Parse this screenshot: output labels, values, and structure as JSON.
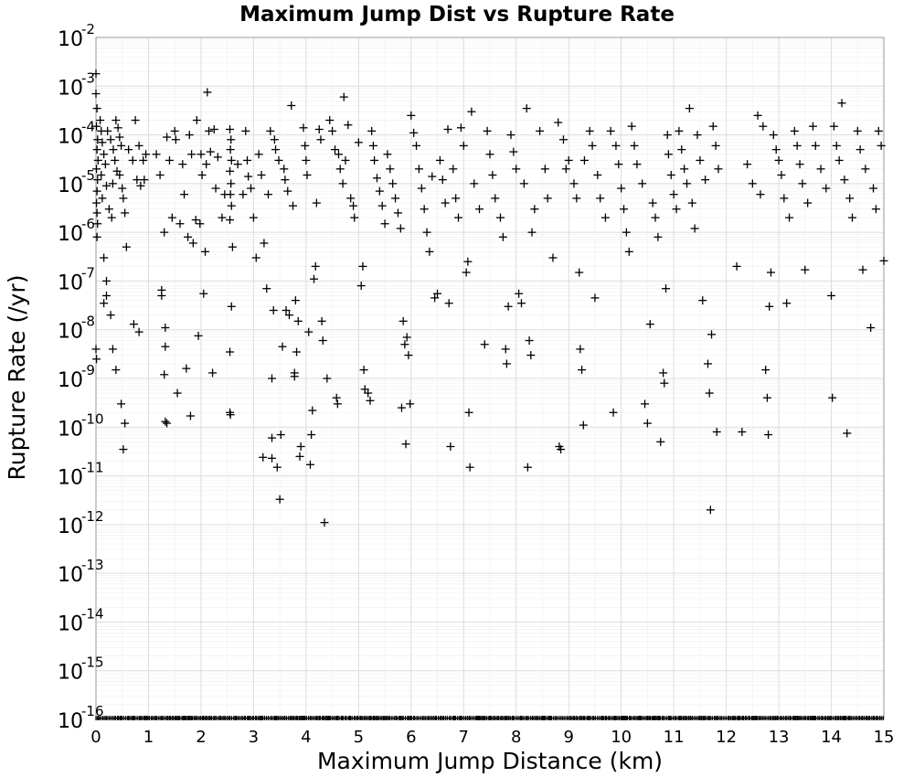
{
  "chart_data": {
    "type": "scatter",
    "title": "Maximum Jump Dist vs Rupture Rate",
    "xlabel": "Maximum Jump Distance (km)",
    "ylabel": "Rupture Rate (/yr)",
    "xlim": [
      0,
      15
    ],
    "ylim": [
      1e-16,
      0.01
    ],
    "yscale": "log",
    "grid": true,
    "marker": "plus",
    "marker_color": "#000000",
    "x_ticks": [
      "0",
      "1",
      "2",
      "3",
      "4",
      "5",
      "6",
      "7",
      "8",
      "9",
      "10",
      "11",
      "12",
      "13",
      "14",
      "15"
    ],
    "y_ticks": [
      {
        "base": "10",
        "exp": "-2"
      },
      {
        "base": "10",
        "exp": "-3"
      },
      {
        "base": "10",
        "exp": "-4"
      },
      {
        "base": "10",
        "exp": "-5"
      },
      {
        "base": "10",
        "exp": "-6"
      },
      {
        "base": "10",
        "exp": "-7"
      },
      {
        "base": "10",
        "exp": "-8"
      },
      {
        "base": "10",
        "exp": "-9"
      },
      {
        "base": "10",
        "exp": "-10"
      },
      {
        "base": "10",
        "exp": "-11"
      },
      {
        "base": "10",
        "exp": "-12"
      },
      {
        "base": "10",
        "exp": "-13"
      },
      {
        "base": "10",
        "exp": "-14"
      },
      {
        "base": "10",
        "exp": "-15"
      },
      {
        "base": "10",
        "exp": "-16"
      }
    ],
    "points": [
      [
        0.0,
        0.0018
      ],
      [
        0.0,
        0.0007
      ],
      [
        0.02,
        0.00035
      ],
      [
        0.01,
        0.00015
      ],
      [
        0.03,
        8e-05
      ],
      [
        0.02,
        5e-05
      ],
      [
        0.04,
        3e-05
      ],
      [
        0.01,
        2e-05
      ],
      [
        0.03,
        1.2e-05
      ],
      [
        0.02,
        7e-06
      ],
      [
        0.01,
        4e-06
      ],
      [
        0.02,
        2.5e-06
      ],
      [
        0.03,
        1.5e-06
      ],
      [
        0.02,
        8e-07
      ],
      [
        0.0,
        4e-09
      ],
      [
        0.01,
        2.5e-09
      ],
      [
        0.08,
        0.0002
      ],
      [
        0.1,
        0.00012
      ],
      [
        0.12,
        7e-05
      ],
      [
        0.15,
        4e-05
      ],
      [
        0.18,
        2.5e-05
      ],
      [
        0.1,
        1.5e-05
      ],
      [
        0.2,
        9e-06
      ],
      [
        0.12,
        5e-06
      ],
      [
        0.25,
        3e-06
      ],
      [
        0.3,
        2e-06
      ],
      [
        0.22,
        0.00012
      ],
      [
        0.28,
        8e-05
      ],
      [
        0.33,
        5e-05
      ],
      [
        0.36,
        3e-05
      ],
      [
        0.4,
        1.8e-05
      ],
      [
        0.32,
        1e-05
      ],
      [
        0.38,
        0.0002
      ],
      [
        0.42,
        0.00014
      ],
      [
        0.45,
        9e-05
      ],
      [
        0.48,
        6e-05
      ],
      [
        0.15,
        3e-07
      ],
      [
        0.2,
        1e-07
      ],
      [
        0.15,
        3.5e-08
      ],
      [
        0.2,
        5e-08
      ],
      [
        0.28,
        2e-08
      ],
      [
        0.32,
        4e-09
      ],
      [
        0.38,
        1.5e-09
      ],
      [
        0.48,
        3e-10
      ],
      [
        0.55,
        1.2e-10
      ],
      [
        0.52,
        3.5e-11
      ],
      [
        0.45,
        1.5e-05
      ],
      [
        0.5,
        8e-06
      ],
      [
        0.52,
        5e-06
      ],
      [
        0.55,
        2.5e-06
      ],
      [
        0.58,
        5e-07
      ],
      [
        0.62,
        5e-05
      ],
      [
        0.7,
        3e-05
      ],
      [
        0.75,
        0.0002
      ],
      [
        0.78,
        1.2e-05
      ],
      [
        0.82,
        6e-05
      ],
      [
        0.85,
        9e-06
      ],
      [
        0.9,
        3e-05
      ],
      [
        0.72,
        1.3e-08
      ],
      [
        0.82,
        9e-09
      ],
      [
        0.92,
        1.2e-05
      ],
      [
        0.95,
        4e-05
      ],
      [
        1.15,
        4e-05
      ],
      [
        1.22,
        1.5e-05
      ],
      [
        1.25,
        5e-08
      ],
      [
        1.25,
        6.5e-08
      ],
      [
        1.3,
        1e-06
      ],
      [
        1.35,
        1.2e-10
      ],
      [
        1.32,
        1.3e-10
      ],
      [
        1.32,
        4.5e-09
      ],
      [
        1.32,
        1.1e-08
      ],
      [
        1.3,
        1.2e-09
      ],
      [
        1.35,
        9e-05
      ],
      [
        1.4,
        3e-05
      ],
      [
        1.45,
        2e-06
      ],
      [
        1.5,
        0.00012
      ],
      [
        1.52,
        8e-05
      ],
      [
        1.55,
        5e-10
      ],
      [
        1.6,
        1.5e-06
      ],
      [
        1.65,
        2.5e-05
      ],
      [
        1.68,
        6e-06
      ],
      [
        1.72,
        1.6e-09
      ],
      [
        1.75,
        8e-07
      ],
      [
        1.78,
        0.0001
      ],
      [
        1.8,
        1.7e-10
      ],
      [
        1.82,
        4e-05
      ],
      [
        1.85,
        6e-07
      ],
      [
        1.9,
        1.8e-06
      ],
      [
        1.92,
        0.0002
      ],
      [
        1.95,
        7.5e-09
      ],
      [
        1.98,
        1.5e-06
      ],
      [
        2.0,
        4e-05
      ],
      [
        2.02,
        1.5e-05
      ],
      [
        2.05,
        5.5e-08
      ],
      [
        2.08,
        4e-07
      ],
      [
        2.1,
        2.5e-05
      ],
      [
        2.12,
        0.00075
      ],
      [
        2.15,
        0.00012
      ],
      [
        2.18,
        4.5e-05
      ],
      [
        2.22,
        1.3e-09
      ],
      [
        2.25,
        0.00013
      ],
      [
        2.28,
        8e-06
      ],
      [
        2.32,
        3.5e-05
      ],
      [
        2.4,
        2e-06
      ],
      [
        2.45,
        6e-06
      ],
      [
        2.55,
        0.00013
      ],
      [
        2.57,
        8e-05
      ],
      [
        2.56,
        5e-05
      ],
      [
        2.58,
        3e-05
      ],
      [
        2.55,
        1.8e-05
      ],
      [
        2.57,
        1e-05
      ],
      [
        2.56,
        6e-06
      ],
      [
        2.58,
        3.5e-06
      ],
      [
        2.55,
        1.8e-06
      ],
      [
        2.58,
        3e-08
      ],
      [
        2.55,
        3.5e-09
      ],
      [
        2.56,
        1.8e-10
      ],
      [
        2.55,
        2e-10
      ],
      [
        2.6,
        5e-07
      ],
      [
        2.7,
        2.5e-05
      ],
      [
        2.8,
        6e-06
      ],
      [
        2.85,
        0.00012
      ],
      [
        2.88,
        3e-05
      ],
      [
        2.9,
        1.4e-05
      ],
      [
        2.95,
        8e-06
      ],
      [
        3.0,
        2e-06
      ],
      [
        3.05,
        3e-07
      ],
      [
        3.1,
        4e-05
      ],
      [
        3.15,
        1.5e-05
      ],
      [
        3.18,
        2.4e-11
      ],
      [
        3.2,
        6e-07
      ],
      [
        3.25,
        7e-08
      ],
      [
        3.28,
        6e-06
      ],
      [
        3.32,
        0.00012
      ],
      [
        3.35,
        1e-09
      ],
      [
        3.35,
        6e-11
      ],
      [
        3.35,
        2.3e-11
      ],
      [
        3.38,
        2.5e-08
      ],
      [
        3.4,
        8e-05
      ],
      [
        3.42,
        5e-05
      ],
      [
        3.45,
        1.5e-11
      ],
      [
        3.48,
        3e-05
      ],
      [
        3.5,
        3.3e-12
      ],
      [
        3.52,
        7e-11
      ],
      [
        3.55,
        4.5e-09
      ],
      [
        3.58,
        2e-05
      ],
      [
        3.6,
        1.2e-05
      ],
      [
        3.62,
        2.5e-08
      ],
      [
        3.65,
        7e-06
      ],
      [
        3.68,
        2e-08
      ],
      [
        3.72,
        0.0004
      ],
      [
        3.75,
        3.5e-06
      ],
      [
        3.78,
        1.1e-09
      ],
      [
        3.78,
        1.3e-09
      ],
      [
        3.8,
        4e-08
      ],
      [
        3.82,
        3.5e-09
      ],
      [
        3.85,
        1.5e-08
      ],
      [
        3.88,
        2.5e-11
      ],
      [
        3.9,
        4e-11
      ],
      [
        3.95,
        0.00014
      ],
      [
        3.98,
        6e-05
      ],
      [
        4.0,
        3e-05
      ],
      [
        4.02,
        1.5e-05
      ],
      [
        4.05,
        9e-09
      ],
      [
        4.08,
        1.7e-11
      ],
      [
        4.1,
        7e-11
      ],
      [
        4.12,
        2.2e-10
      ],
      [
        4.15,
        1.1e-07
      ],
      [
        4.18,
        2e-07
      ],
      [
        4.2,
        4e-06
      ],
      [
        4.25,
        0.00013
      ],
      [
        4.28,
        8e-05
      ],
      [
        4.3,
        1.5e-08
      ],
      [
        4.32,
        6e-09
      ],
      [
        4.35,
        1.1e-12
      ],
      [
        4.4,
        1e-09
      ],
      [
        4.45,
        0.0002
      ],
      [
        4.5,
        0.00012
      ],
      [
        4.55,
        5e-05
      ],
      [
        4.58,
        4e-10
      ],
      [
        4.6,
        3e-10
      ],
      [
        4.62,
        4e-05
      ],
      [
        4.65,
        2e-05
      ],
      [
        4.7,
        1e-05
      ],
      [
        4.72,
        0.0006
      ],
      [
        4.75,
        3e-05
      ],
      [
        4.8,
        0.00016
      ],
      [
        4.85,
        5e-06
      ],
      [
        4.9,
        3.5e-06
      ],
      [
        4.92,
        2e-06
      ],
      [
        5.0,
        7e-05
      ],
      [
        5.05,
        8e-08
      ],
      [
        5.08,
        2e-07
      ],
      [
        5.1,
        1.5e-09
      ],
      [
        5.12,
        6e-10
      ],
      [
        5.18,
        5e-10
      ],
      [
        5.22,
        3.5e-10
      ],
      [
        5.25,
        0.00012
      ],
      [
        5.28,
        6e-05
      ],
      [
        5.3,
        3e-05
      ],
      [
        5.35,
        1.3e-05
      ],
      [
        5.4,
        7e-06
      ],
      [
        5.45,
        3.5e-06
      ],
      [
        5.5,
        1.5e-06
      ],
      [
        5.55,
        4e-05
      ],
      [
        5.6,
        2e-05
      ],
      [
        5.65,
        1e-05
      ],
      [
        5.7,
        5e-06
      ],
      [
        5.75,
        2.5e-06
      ],
      [
        5.8,
        1.2e-06
      ],
      [
        5.82,
        2.5e-10
      ],
      [
        5.85,
        1.5e-08
      ],
      [
        5.88,
        5e-09
      ],
      [
        5.9,
        4.5e-11
      ],
      [
        5.92,
        7e-09
      ],
      [
        5.95,
        3e-09
      ],
      [
        5.98,
        3e-10
      ],
      [
        6.0,
        0.00025
      ],
      [
        6.05,
        0.00011
      ],
      [
        6.1,
        6e-05
      ],
      [
        6.15,
        2e-05
      ],
      [
        6.2,
        8e-06
      ],
      [
        6.25,
        3e-06
      ],
      [
        6.3,
        1e-06
      ],
      [
        6.35,
        4e-07
      ],
      [
        6.4,
        1.4e-05
      ],
      [
        6.45,
        4.5e-08
      ],
      [
        6.5,
        5.5e-08
      ],
      [
        6.55,
        3e-05
      ],
      [
        6.6,
        1.2e-05
      ],
      [
        6.65,
        4e-06
      ],
      [
        6.7,
        0.00013
      ],
      [
        6.72,
        3.5e-08
      ],
      [
        6.75,
        4e-11
      ],
      [
        6.8,
        2e-05
      ],
      [
        6.85,
        5e-06
      ],
      [
        6.9,
        2e-06
      ],
      [
        6.95,
        0.00014
      ],
      [
        7.0,
        6e-05
      ],
      [
        7.05,
        1.5e-07
      ],
      [
        7.08,
        2.5e-07
      ],
      [
        7.1,
        2e-10
      ],
      [
        7.12,
        1.5e-11
      ],
      [
        7.15,
        0.0003
      ],
      [
        7.2,
        1e-05
      ],
      [
        7.3,
        3e-06
      ],
      [
        7.4,
        5e-09
      ],
      [
        7.45,
        0.00012
      ],
      [
        7.5,
        4e-05
      ],
      [
        7.55,
        1.5e-05
      ],
      [
        7.6,
        5e-06
      ],
      [
        7.7,
        2e-06
      ],
      [
        7.75,
        8e-07
      ],
      [
        7.8,
        4e-09
      ],
      [
        7.82,
        2e-09
      ],
      [
        7.85,
        3e-08
      ],
      [
        7.9,
        0.0001
      ],
      [
        7.95,
        4.5e-05
      ],
      [
        8.0,
        2e-05
      ],
      [
        8.05,
        5.5e-08
      ],
      [
        8.1,
        3.5e-08
      ],
      [
        8.15,
        1e-05
      ],
      [
        8.2,
        0.00035
      ],
      [
        8.22,
        1.5e-11
      ],
      [
        8.25,
        6e-09
      ],
      [
        8.28,
        3e-09
      ],
      [
        8.3,
        1e-06
      ],
      [
        8.35,
        3e-06
      ],
      [
        8.45,
        0.00012
      ],
      [
        8.55,
        2e-05
      ],
      [
        8.6,
        5e-06
      ],
      [
        8.7,
        3e-07
      ],
      [
        8.8,
        0.00018
      ],
      [
        8.82,
        4e-11
      ],
      [
        8.85,
        3.5e-11
      ],
      [
        8.9,
        8e-05
      ],
      [
        8.95,
        2e-05
      ],
      [
        9.0,
        3e-05
      ],
      [
        9.1,
        1e-05
      ],
      [
        9.15,
        5e-06
      ],
      [
        9.2,
        1.5e-07
      ],
      [
        9.22,
        4e-09
      ],
      [
        9.25,
        1.5e-09
      ],
      [
        9.28,
        1.1e-10
      ],
      [
        9.3,
        3e-05
      ],
      [
        9.4,
        0.00012
      ],
      [
        9.45,
        6e-05
      ],
      [
        9.5,
        4.5e-08
      ],
      [
        9.55,
        1.5e-05
      ],
      [
        9.6,
        5e-06
      ],
      [
        9.7,
        2e-06
      ],
      [
        9.8,
        0.00012
      ],
      [
        9.85,
        2e-10
      ],
      [
        9.9,
        6e-05
      ],
      [
        9.95,
        2.5e-05
      ],
      [
        10.0,
        8e-06
      ],
      [
        10.05,
        3e-06
      ],
      [
        10.1,
        1e-06
      ],
      [
        10.15,
        4e-07
      ],
      [
        10.2,
        0.00015
      ],
      [
        10.25,
        6e-05
      ],
      [
        10.3,
        2.5e-05
      ],
      [
        10.4,
        1e-05
      ],
      [
        10.45,
        3e-10
      ],
      [
        10.5,
        1.2e-10
      ],
      [
        10.55,
        1.3e-08
      ],
      [
        10.6,
        4e-06
      ],
      [
        10.65,
        2e-06
      ],
      [
        10.7,
        8e-07
      ],
      [
        10.75,
        5e-11
      ],
      [
        10.8,
        1.3e-09
      ],
      [
        10.82,
        8e-10
      ],
      [
        10.85,
        7e-08
      ],
      [
        10.88,
        0.0001
      ],
      [
        10.9,
        4e-05
      ],
      [
        10.95,
        1.5e-05
      ],
      [
        11.0,
        6e-06
      ],
      [
        11.05,
        3e-06
      ],
      [
        11.1,
        0.00012
      ],
      [
        11.15,
        5e-05
      ],
      [
        11.2,
        2e-05
      ],
      [
        11.25,
        1e-05
      ],
      [
        11.3,
        0.00035
      ],
      [
        11.35,
        4e-06
      ],
      [
        11.4,
        1.2e-06
      ],
      [
        11.45,
        0.0001
      ],
      [
        11.5,
        3e-05
      ],
      [
        11.55,
        4e-08
      ],
      [
        11.6,
        1.2e-05
      ],
      [
        11.65,
        2e-09
      ],
      [
        11.68,
        5e-10
      ],
      [
        11.7,
        2e-12
      ],
      [
        11.72,
        8e-09
      ],
      [
        11.75,
        0.00015
      ],
      [
        11.8,
        6e-05
      ],
      [
        11.82,
        8e-11
      ],
      [
        11.85,
        2e-05
      ],
      [
        12.2,
        2e-07
      ],
      [
        12.3,
        8e-11
      ],
      [
        12.4,
        2.5e-05
      ],
      [
        12.5,
        1e-05
      ],
      [
        12.6,
        0.00025
      ],
      [
        12.65,
        6e-06
      ],
      [
        12.7,
        0.00015
      ],
      [
        12.75,
        1.5e-09
      ],
      [
        12.78,
        4e-10
      ],
      [
        12.8,
        7e-11
      ],
      [
        12.82,
        3e-08
      ],
      [
        12.85,
        1.5e-07
      ],
      [
        12.9,
        0.0001
      ],
      [
        12.95,
        5e-05
      ],
      [
        13.0,
        3e-05
      ],
      [
        13.05,
        1.5e-05
      ],
      [
        13.1,
        5e-06
      ],
      [
        13.15,
        3.5e-08
      ],
      [
        13.2,
        2e-06
      ],
      [
        13.3,
        0.00012
      ],
      [
        13.35,
        6e-05
      ],
      [
        13.4,
        2.5e-05
      ],
      [
        13.45,
        1e-05
      ],
      [
        13.5,
        1.7e-07
      ],
      [
        13.55,
        4e-06
      ],
      [
        13.65,
        0.00015
      ],
      [
        13.7,
        6e-05
      ],
      [
        13.8,
        2e-05
      ],
      [
        13.9,
        8e-06
      ],
      [
        14.0,
        5e-08
      ],
      [
        14.02,
        4e-10
      ],
      [
        14.05,
        0.00015
      ],
      [
        14.1,
        6e-05
      ],
      [
        14.15,
        3e-05
      ],
      [
        14.2,
        0.00045
      ],
      [
        14.25,
        1.2e-05
      ],
      [
        14.3,
        7.5e-11
      ],
      [
        14.35,
        5e-06
      ],
      [
        14.4,
        2e-06
      ],
      [
        14.5,
        0.00012
      ],
      [
        14.55,
        5e-05
      ],
      [
        14.6,
        1.7e-07
      ],
      [
        14.65,
        2e-05
      ],
      [
        14.75,
        1.1e-08
      ],
      [
        14.8,
        8e-06
      ],
      [
        14.85,
        3e-06
      ],
      [
        14.9,
        0.00012
      ],
      [
        14.95,
        6e-05
      ],
      [
        15.0,
        2.6e-07
      ]
    ]
  }
}
